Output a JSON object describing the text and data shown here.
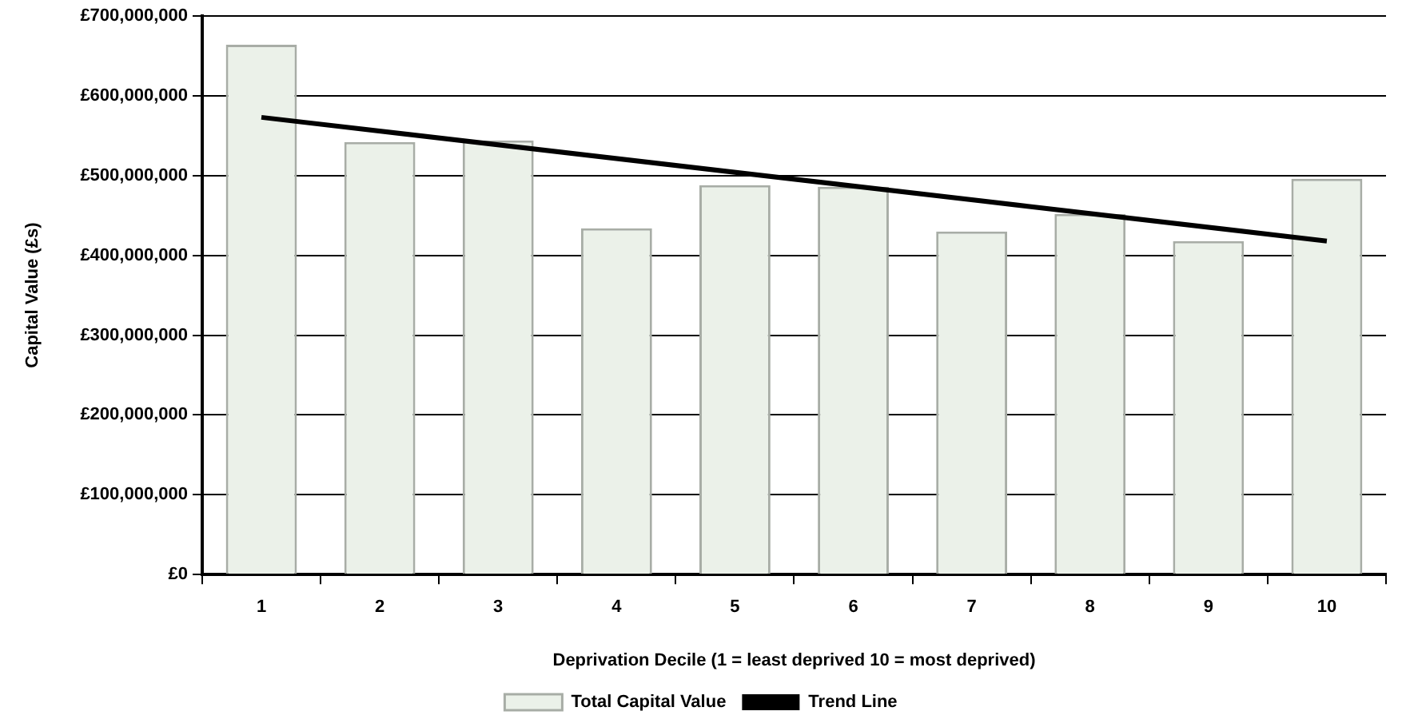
{
  "chart_data": {
    "type": "bar",
    "xlabel": "Deprivation Decile (1 = least deprived 10 = most deprived)",
    "ylabel": "Capital Value (£s)",
    "categories": [
      "1",
      "2",
      "3",
      "4",
      "5",
      "6",
      "7",
      "8",
      "9",
      "10"
    ],
    "series": [
      {
        "name": "Total Capital Value",
        "color": "#ebf1e9",
        "values": [
          664000000,
          542000000,
          544000000,
          434000000,
          488000000,
          486000000,
          430000000,
          452000000,
          418000000,
          496000000
        ]
      },
      {
        "name": "Trend Line",
        "type": "line",
        "color": "#000000",
        "x": [
          "1",
          "10"
        ],
        "values": [
          573000000,
          418000000
        ]
      }
    ],
    "ylim": [
      0,
      700000000
    ],
    "yticks": [
      {
        "value": 0,
        "label": "£0"
      },
      {
        "value": 100000000,
        "label": "£100,000,000"
      },
      {
        "value": 200000000,
        "label": "£200,000,000"
      },
      {
        "value": 300000000,
        "label": "£300,000,000"
      },
      {
        "value": 400000000,
        "label": "£400,000,000"
      },
      {
        "value": 500000000,
        "label": "£500,000,000"
      },
      {
        "value": 600000000,
        "label": "£600,000,000"
      },
      {
        "value": 700000000,
        "label": "£700,000,000"
      }
    ],
    "grid": "y",
    "legend": "bottom",
    "marker": "none"
  }
}
